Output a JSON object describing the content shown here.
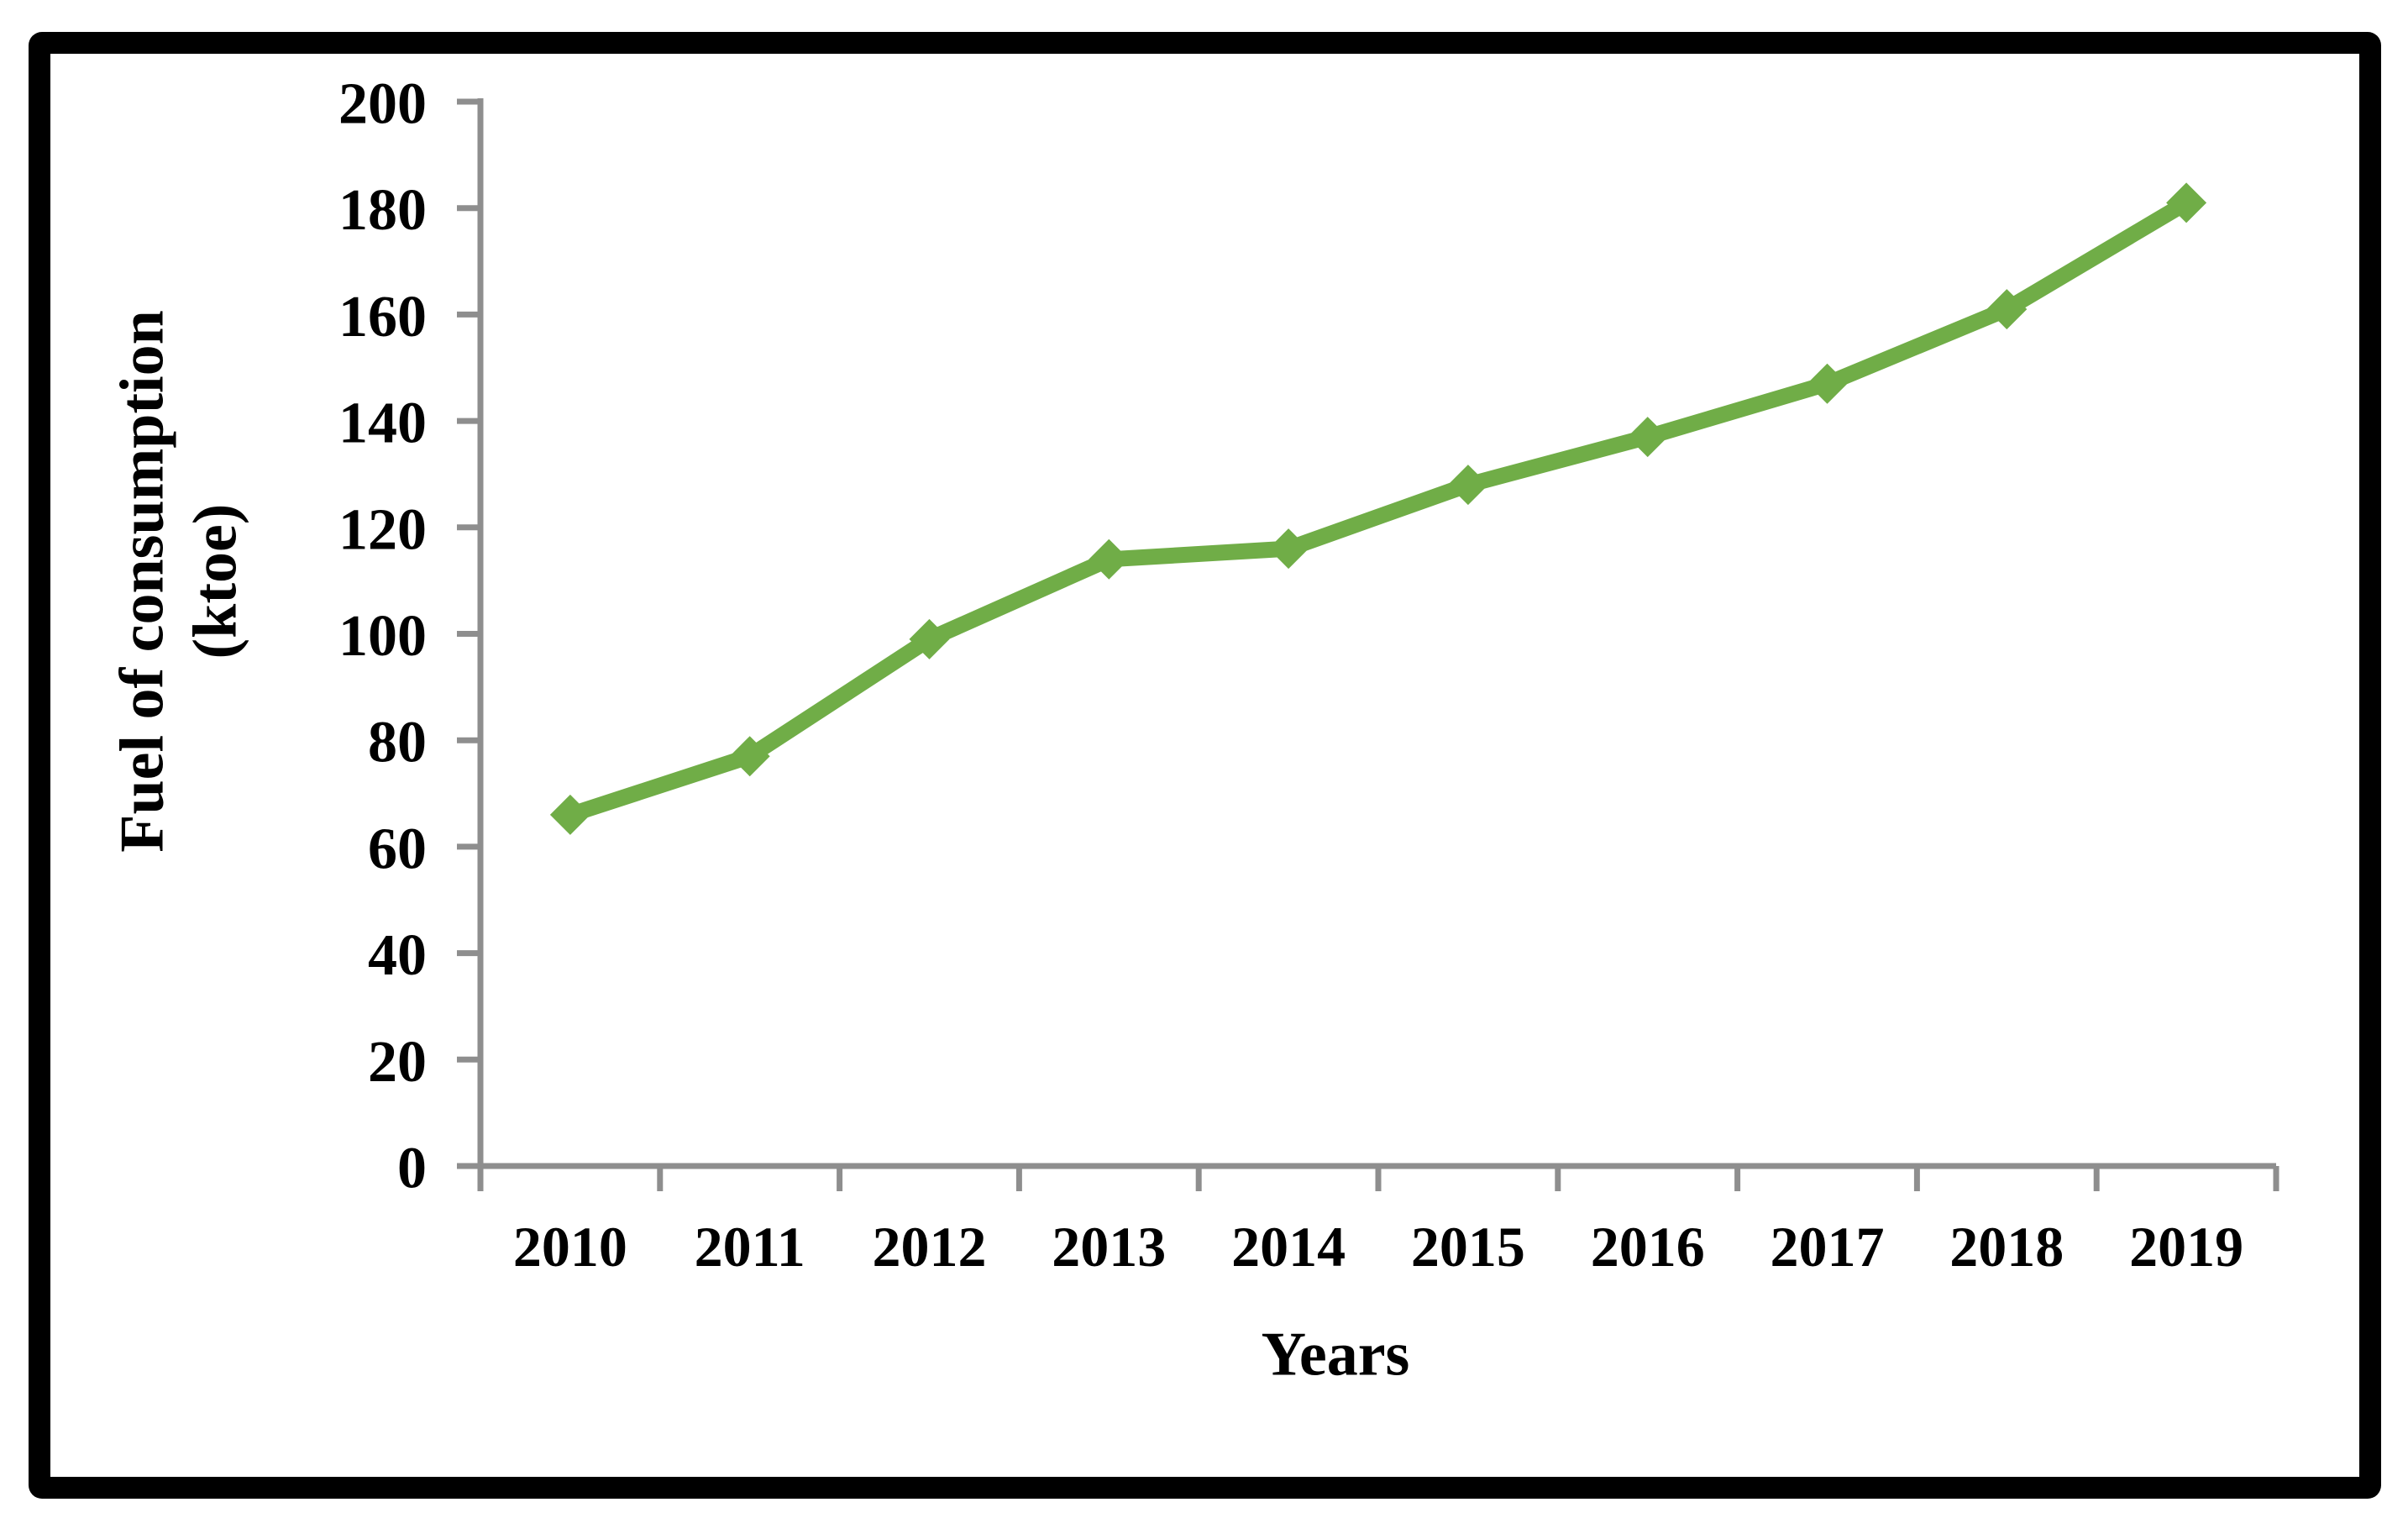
{
  "figure": {
    "background_color": "#FFFFFF",
    "border_color": "#000000"
  },
  "chart_data": {
    "type": "line",
    "title": "",
    "categories": [
      "2010",
      "2011",
      "2012",
      "2013",
      "2014",
      "2015",
      "2016",
      "2017",
      "2018",
      "2019"
    ],
    "values": [
      66,
      77,
      99,
      114,
      116,
      128,
      137,
      147,
      161,
      181
    ],
    "xlabel": "Years",
    "ylabel": "Fuel of consumption",
    "ylabel_unit": "(ktoe)",
    "ylim": [
      0,
      200
    ],
    "ytick_step": 20,
    "yticks": [
      0,
      20,
      40,
      60,
      80,
      100,
      120,
      140,
      160,
      180,
      200
    ],
    "grid": "off",
    "legend_position": "none",
    "marker": "diamond",
    "line_color": "#70AD47",
    "axis_color": "#8E8E8E",
    "text_color": "#000000"
  }
}
